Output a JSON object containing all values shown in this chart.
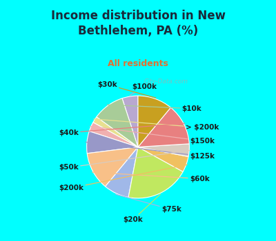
{
  "title": "Income distribution in New\nBethlehem, PA (%)",
  "subtitle": "All residents",
  "bg_color": "#00FFFF",
  "chart_bg_top": "#e0f5ec",
  "chart_bg_bottom": "#c8ede0",
  "labels": [
    "$100k",
    "$10k",
    "> $200k",
    "$150k",
    "$125k",
    "$60k",
    "$75k",
    "$20k",
    "$200k",
    "$50k",
    "$40k",
    "$30k"
  ],
  "values": [
    5,
    10,
    2,
    3,
    7,
    12,
    8,
    20,
    5,
    4,
    13,
    11
  ],
  "colors": [
    "#b8a8d0",
    "#a8cc98",
    "#e8e090",
    "#f0b0b0",
    "#9898c8",
    "#f8c088",
    "#a0b8e8",
    "#c0e860",
    "#f0c060",
    "#d8ccc0",
    "#e88080",
    "#c8a020"
  ],
  "startangle": 90,
  "watermark": "City-Data.com",
  "title_color": "#1a2a3a",
  "subtitle_color": "#e07030",
  "label_color": "#1a1a1a",
  "label_fontsize": 7.5
}
